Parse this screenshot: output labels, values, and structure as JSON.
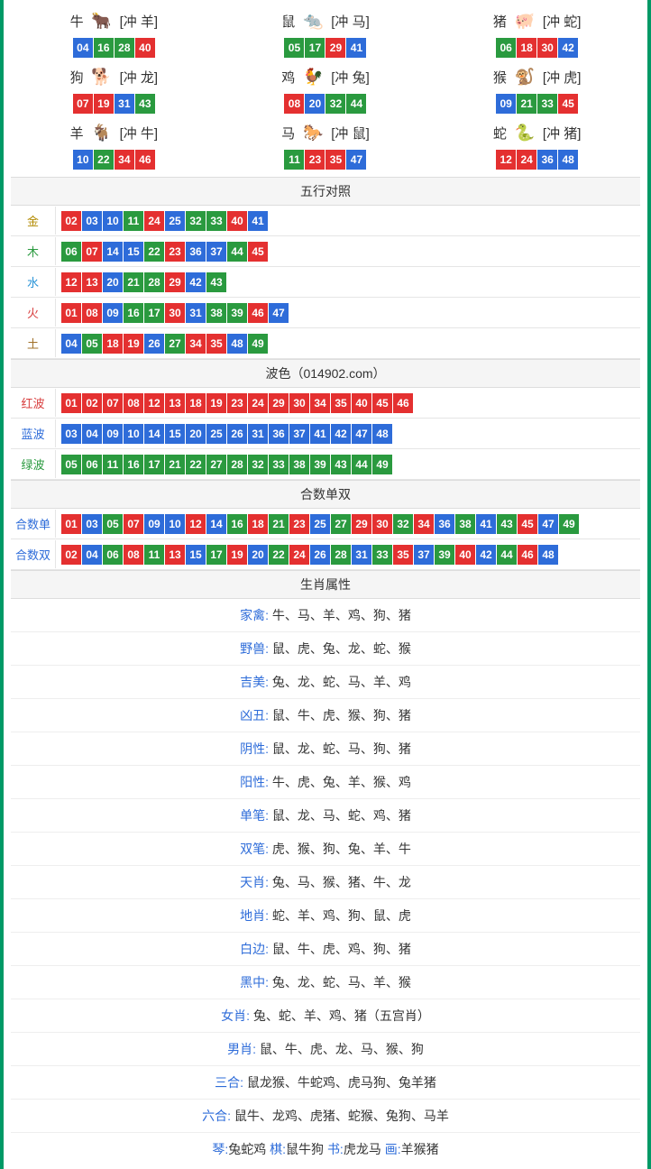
{
  "colors": {
    "border": "#009966",
    "section_bg": "#f5f5f5",
    "line": "#e5e5e5",
    "num_red": "#e43030",
    "num_blue": "#2e6cd9",
    "num_green": "#2a9a3f"
  },
  "zodiac": [
    {
      "name": "牛",
      "emoji": "🐂",
      "chong": "[冲 羊]",
      "nums": [
        [
          "04",
          "blue"
        ],
        [
          "16",
          "green"
        ],
        [
          "28",
          "green"
        ],
        [
          "40",
          "red"
        ]
      ]
    },
    {
      "name": "鼠",
      "emoji": "🐀",
      "chong": "[冲 马]",
      "nums": [
        [
          "05",
          "green"
        ],
        [
          "17",
          "green"
        ],
        [
          "29",
          "red"
        ],
        [
          "41",
          "blue"
        ]
      ]
    },
    {
      "name": "猪",
      "emoji": "🐖",
      "chong": "[冲 蛇]",
      "nums": [
        [
          "06",
          "green"
        ],
        [
          "18",
          "red"
        ],
        [
          "30",
          "red"
        ],
        [
          "42",
          "blue"
        ]
      ]
    },
    {
      "name": "狗",
      "emoji": "🐕",
      "chong": "[冲 龙]",
      "nums": [
        [
          "07",
          "red"
        ],
        [
          "19",
          "red"
        ],
        [
          "31",
          "blue"
        ],
        [
          "43",
          "green"
        ]
      ]
    },
    {
      "name": "鸡",
      "emoji": "🐓",
      "chong": "[冲 兔]",
      "nums": [
        [
          "08",
          "red"
        ],
        [
          "20",
          "blue"
        ],
        [
          "32",
          "green"
        ],
        [
          "44",
          "green"
        ]
      ]
    },
    {
      "name": "猴",
      "emoji": "🐒",
      "chong": "[冲 虎]",
      "nums": [
        [
          "09",
          "blue"
        ],
        [
          "21",
          "green"
        ],
        [
          "33",
          "green"
        ],
        [
          "45",
          "red"
        ]
      ]
    },
    {
      "name": "羊",
      "emoji": "🐐",
      "chong": "[冲 牛]",
      "nums": [
        [
          "10",
          "blue"
        ],
        [
          "22",
          "green"
        ],
        [
          "34",
          "red"
        ],
        [
          "46",
          "red"
        ]
      ]
    },
    {
      "name": "马",
      "emoji": "🐎",
      "chong": "[冲 鼠]",
      "nums": [
        [
          "11",
          "green"
        ],
        [
          "23",
          "red"
        ],
        [
          "35",
          "red"
        ],
        [
          "47",
          "blue"
        ]
      ]
    },
    {
      "name": "蛇",
      "emoji": "🐍",
      "chong": "[冲 猪]",
      "nums": [
        [
          "12",
          "red"
        ],
        [
          "24",
          "red"
        ],
        [
          "36",
          "blue"
        ],
        [
          "48",
          "blue"
        ]
      ]
    }
  ],
  "sections": {
    "wuxing_title": "五行对照",
    "bose_title": "波色（014902.com）",
    "heshu_title": "合数单双",
    "attr_title": "生肖属性"
  },
  "wuxing": [
    {
      "label": "金",
      "cls": "gold",
      "nums": [
        [
          "02",
          "red"
        ],
        [
          "03",
          "blue"
        ],
        [
          "10",
          "blue"
        ],
        [
          "11",
          "green"
        ],
        [
          "24",
          "red"
        ],
        [
          "25",
          "blue"
        ],
        [
          "32",
          "green"
        ],
        [
          "33",
          "green"
        ],
        [
          "40",
          "red"
        ],
        [
          "41",
          "blue"
        ]
      ]
    },
    {
      "label": "木",
      "cls": "wood",
      "nums": [
        [
          "06",
          "green"
        ],
        [
          "07",
          "red"
        ],
        [
          "14",
          "blue"
        ],
        [
          "15",
          "blue"
        ],
        [
          "22",
          "green"
        ],
        [
          "23",
          "red"
        ],
        [
          "36",
          "blue"
        ],
        [
          "37",
          "blue"
        ],
        [
          "44",
          "green"
        ],
        [
          "45",
          "red"
        ]
      ]
    },
    {
      "label": "水",
      "cls": "water",
      "nums": [
        [
          "12",
          "red"
        ],
        [
          "13",
          "red"
        ],
        [
          "20",
          "blue"
        ],
        [
          "21",
          "green"
        ],
        [
          "28",
          "green"
        ],
        [
          "29",
          "red"
        ],
        [
          "42",
          "blue"
        ],
        [
          "43",
          "green"
        ]
      ]
    },
    {
      "label": "火",
      "cls": "fire",
      "nums": [
        [
          "01",
          "red"
        ],
        [
          "08",
          "red"
        ],
        [
          "09",
          "blue"
        ],
        [
          "16",
          "green"
        ],
        [
          "17",
          "green"
        ],
        [
          "30",
          "red"
        ],
        [
          "31",
          "blue"
        ],
        [
          "38",
          "green"
        ],
        [
          "39",
          "green"
        ],
        [
          "46",
          "red"
        ],
        [
          "47",
          "blue"
        ]
      ]
    },
    {
      "label": "土",
      "cls": "earth",
      "nums": [
        [
          "04",
          "blue"
        ],
        [
          "05",
          "green"
        ],
        [
          "18",
          "red"
        ],
        [
          "19",
          "red"
        ],
        [
          "26",
          "blue"
        ],
        [
          "27",
          "green"
        ],
        [
          "34",
          "red"
        ],
        [
          "35",
          "red"
        ],
        [
          "48",
          "blue"
        ],
        [
          "49",
          "green"
        ]
      ]
    }
  ],
  "bose": [
    {
      "label": "红波",
      "cls": "redwave",
      "nums": [
        [
          "01",
          "red"
        ],
        [
          "02",
          "red"
        ],
        [
          "07",
          "red"
        ],
        [
          "08",
          "red"
        ],
        [
          "12",
          "red"
        ],
        [
          "13",
          "red"
        ],
        [
          "18",
          "red"
        ],
        [
          "19",
          "red"
        ],
        [
          "23",
          "red"
        ],
        [
          "24",
          "red"
        ],
        [
          "29",
          "red"
        ],
        [
          "30",
          "red"
        ],
        [
          "34",
          "red"
        ],
        [
          "35",
          "red"
        ],
        [
          "40",
          "red"
        ],
        [
          "45",
          "red"
        ],
        [
          "46",
          "red"
        ]
      ]
    },
    {
      "label": "蓝波",
      "cls": "bluewave",
      "nums": [
        [
          "03",
          "blue"
        ],
        [
          "04",
          "blue"
        ],
        [
          "09",
          "blue"
        ],
        [
          "10",
          "blue"
        ],
        [
          "14",
          "blue"
        ],
        [
          "15",
          "blue"
        ],
        [
          "20",
          "blue"
        ],
        [
          "25",
          "blue"
        ],
        [
          "26",
          "blue"
        ],
        [
          "31",
          "blue"
        ],
        [
          "36",
          "blue"
        ],
        [
          "37",
          "blue"
        ],
        [
          "41",
          "blue"
        ],
        [
          "42",
          "blue"
        ],
        [
          "47",
          "blue"
        ],
        [
          "48",
          "blue"
        ]
      ]
    },
    {
      "label": "绿波",
      "cls": "greenwave",
      "nums": [
        [
          "05",
          "green"
        ],
        [
          "06",
          "green"
        ],
        [
          "11",
          "green"
        ],
        [
          "16",
          "green"
        ],
        [
          "17",
          "green"
        ],
        [
          "21",
          "green"
        ],
        [
          "22",
          "green"
        ],
        [
          "27",
          "green"
        ],
        [
          "28",
          "green"
        ],
        [
          "32",
          "green"
        ],
        [
          "33",
          "green"
        ],
        [
          "38",
          "green"
        ],
        [
          "39",
          "green"
        ],
        [
          "43",
          "green"
        ],
        [
          "44",
          "green"
        ],
        [
          "49",
          "green"
        ]
      ]
    }
  ],
  "heshu": [
    {
      "label": "合数单",
      "cls": "bluewave",
      "nums": [
        [
          "01",
          "red"
        ],
        [
          "03",
          "blue"
        ],
        [
          "05",
          "green"
        ],
        [
          "07",
          "red"
        ],
        [
          "09",
          "blue"
        ],
        [
          "10",
          "blue"
        ],
        [
          "12",
          "red"
        ],
        [
          "14",
          "blue"
        ],
        [
          "16",
          "green"
        ],
        [
          "18",
          "red"
        ],
        [
          "21",
          "green"
        ],
        [
          "23",
          "red"
        ],
        [
          "25",
          "blue"
        ],
        [
          "27",
          "green"
        ],
        [
          "29",
          "red"
        ],
        [
          "30",
          "red"
        ],
        [
          "32",
          "green"
        ],
        [
          "34",
          "red"
        ],
        [
          "36",
          "blue"
        ],
        [
          "38",
          "green"
        ],
        [
          "41",
          "blue"
        ],
        [
          "43",
          "green"
        ],
        [
          "45",
          "red"
        ],
        [
          "47",
          "blue"
        ],
        [
          "49",
          "green"
        ]
      ]
    },
    {
      "label": "合数双",
      "cls": "bluewave",
      "nums": [
        [
          "02",
          "red"
        ],
        [
          "04",
          "blue"
        ],
        [
          "06",
          "green"
        ],
        [
          "08",
          "red"
        ],
        [
          "11",
          "green"
        ],
        [
          "13",
          "red"
        ],
        [
          "15",
          "blue"
        ],
        [
          "17",
          "green"
        ],
        [
          "19",
          "red"
        ],
        [
          "20",
          "blue"
        ],
        [
          "22",
          "green"
        ],
        [
          "24",
          "red"
        ],
        [
          "26",
          "blue"
        ],
        [
          "28",
          "green"
        ],
        [
          "31",
          "blue"
        ],
        [
          "33",
          "green"
        ],
        [
          "35",
          "red"
        ],
        [
          "37",
          "blue"
        ],
        [
          "39",
          "green"
        ],
        [
          "40",
          "red"
        ],
        [
          "42",
          "blue"
        ],
        [
          "44",
          "green"
        ],
        [
          "46",
          "red"
        ],
        [
          "48",
          "blue"
        ]
      ]
    }
  ],
  "attrs": [
    {
      "label": "家禽",
      "value": "牛、马、羊、鸡、狗、猪"
    },
    {
      "label": "野兽",
      "value": "鼠、虎、兔、龙、蛇、猴"
    },
    {
      "label": "吉美",
      "value": "兔、龙、蛇、马、羊、鸡"
    },
    {
      "label": "凶丑",
      "value": "鼠、牛、虎、猴、狗、猪"
    },
    {
      "label": "阴性",
      "value": "鼠、龙、蛇、马、狗、猪"
    },
    {
      "label": "阳性",
      "value": "牛、虎、兔、羊、猴、鸡"
    },
    {
      "label": "单笔",
      "value": "鼠、龙、马、蛇、鸡、猪"
    },
    {
      "label": "双笔",
      "value": "虎、猴、狗、兔、羊、牛"
    },
    {
      "label": "天肖",
      "value": "兔、马、猴、猪、牛、龙"
    },
    {
      "label": "地肖",
      "value": "蛇、羊、鸡、狗、鼠、虎"
    },
    {
      "label": "白边",
      "value": "鼠、牛、虎、鸡、狗、猪"
    },
    {
      "label": "黑中",
      "value": "兔、龙、蛇、马、羊、猴"
    },
    {
      "label": "女肖",
      "value": "兔、蛇、羊、鸡、猪（五宫肖）"
    },
    {
      "label": "男肖",
      "value": "鼠、牛、虎、龙、马、猴、狗"
    },
    {
      "label": "三合",
      "value": "鼠龙猴、牛蛇鸡、虎马狗、兔羊猪"
    },
    {
      "label": "六合",
      "value": "鼠牛、龙鸡、虎猪、蛇猴、兔狗、马羊"
    }
  ],
  "bottom_line": {
    "parts": [
      {
        "label": "琴:",
        "value": "兔蛇鸡   "
      },
      {
        "label": "棋:",
        "value": "鼠牛狗   "
      },
      {
        "label": "书:",
        "value": "虎龙马   "
      },
      {
        "label": "画:",
        "value": "羊猴猪"
      }
    ]
  }
}
